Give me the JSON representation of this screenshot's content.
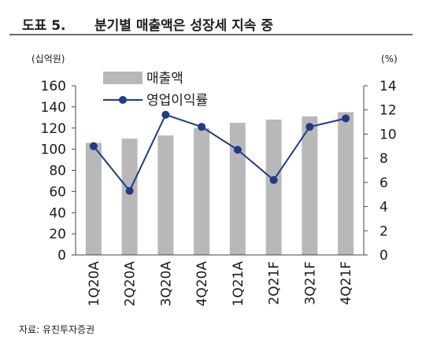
{
  "header": {
    "figure_number": "도표 5.",
    "title": "분기별 매출액은 성장세 지속 중"
  },
  "source_note": "자료: 유진투자증권",
  "colors": {
    "bar": "#b8b8b8",
    "line": "#1f3b8a",
    "axis": "#444444",
    "title_rule": "#6d6d6d"
  },
  "chart_data": {
    "type": "bar",
    "title": "분기별 매출액은 성장세 지속 중",
    "categories": [
      "1Q20A",
      "2Q20A",
      "3Q20A",
      "4Q20A",
      "1Q21A",
      "2Q21F",
      "3Q21F",
      "4Q21F"
    ],
    "y_left_unit": "(십억원)",
    "y_right_unit": "(%)",
    "y_left_ticks": [
      "0",
      "20",
      "40",
      "60",
      "80",
      "100",
      "120",
      "140",
      "160"
    ],
    "y_right_ticks": [
      "0",
      "2",
      "4",
      "6",
      "8",
      "10",
      "12",
      "14"
    ],
    "ylim_left": [
      0,
      160
    ],
    "ylim_right": [
      0,
      14
    ],
    "grid": false,
    "legend_position": "top-left",
    "series": [
      {
        "name": "매출액",
        "type": "bar",
        "axis": "left",
        "values": [
          106,
          110,
          113,
          120,
          125,
          128,
          131,
          135
        ]
      },
      {
        "name": "영업이익률",
        "type": "line",
        "axis": "right",
        "values": [
          9.0,
          5.3,
          11.6,
          10.6,
          8.7,
          6.2,
          10.6,
          11.3
        ]
      }
    ]
  }
}
